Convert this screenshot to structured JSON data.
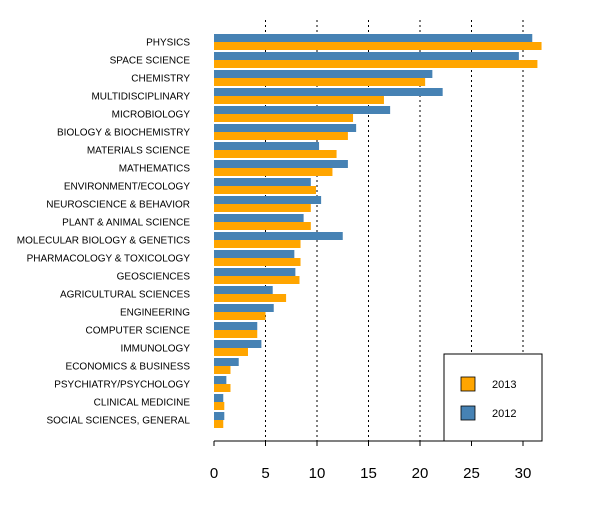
{
  "chart_data": {
    "type": "bar",
    "orientation": "horizontal",
    "title": "",
    "xlabel": "",
    "ylabel": "",
    "xlim": [
      0,
      32
    ],
    "ticks": [
      "0",
      "5",
      "10",
      "15",
      "20",
      "25",
      "30"
    ],
    "tick_values": [
      0,
      5,
      10,
      15,
      20,
      25,
      30
    ],
    "grid": "vertical dotted",
    "legend_position": "bottom-right",
    "categories": [
      "PHYSICS",
      "SPACE SCIENCE",
      "CHEMISTRY",
      "MULTIDISCIPLINARY",
      "MICROBIOLOGY",
      "BIOLOGY & BIOCHEMISTRY",
      "MATERIALS SCIENCE",
      "MATHEMATICS",
      "ENVIRONMENT/ECOLOGY",
      "NEUROSCIENCE & BEHAVIOR",
      "PLANT & ANIMAL SCIENCE",
      "MOLECULAR BIOLOGY & GENETICS",
      "PHARMACOLOGY & TOXICOLOGY",
      "GEOSCIENCES",
      "AGRICULTURAL SCIENCES",
      "ENGINEERING",
      "COMPUTER SCIENCE",
      "IMMUNOLOGY",
      "ECONOMICS & BUSINESS",
      "PSYCHIATRY/PSYCHOLOGY",
      "CLINICAL MEDICINE",
      "SOCIAL SCIENCES, GENERAL"
    ],
    "series": [
      {
        "name": "2012",
        "color": "#4682B4",
        "values": [
          30.9,
          29.6,
          21.2,
          22.2,
          17.1,
          13.8,
          10.2,
          13.0,
          9.4,
          10.4,
          8.7,
          12.5,
          7.8,
          7.9,
          5.7,
          5.8,
          4.2,
          4.6,
          2.4,
          1.2,
          0.9,
          1.0
        ]
      },
      {
        "name": "2013",
        "color": "#FFA500",
        "values": [
          31.8,
          31.4,
          20.5,
          16.5,
          13.5,
          13.0,
          11.9,
          11.5,
          9.9,
          9.4,
          9.4,
          8.4,
          8.4,
          8.3,
          7.0,
          5.0,
          4.2,
          3.3,
          1.6,
          1.6,
          1.0,
          0.9
        ]
      }
    ],
    "legend": [
      {
        "label": "2013",
        "color": "#FFA500"
      },
      {
        "label": "2012",
        "color": "#4682B4"
      }
    ]
  }
}
